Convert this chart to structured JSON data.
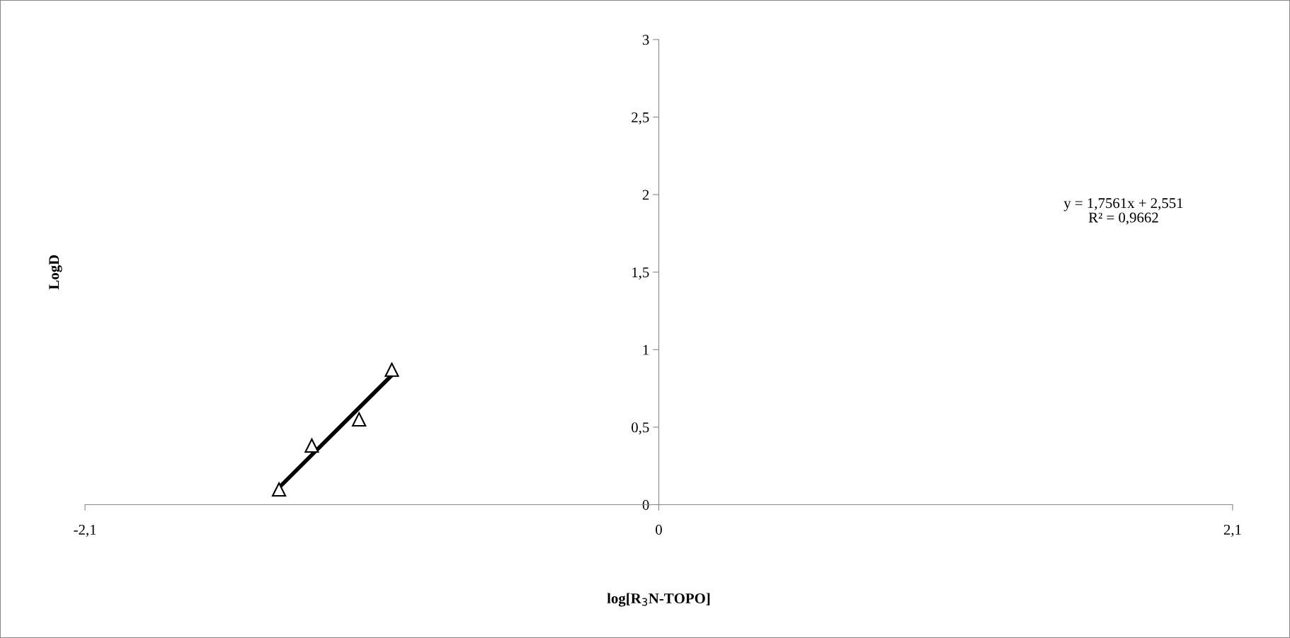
{
  "chart_data": {
    "type": "scatter",
    "xlabel": "log[R$_{3}$N-TOPO]",
    "ylabel": "LogD",
    "annotations": [
      "y = 1,7561x + 2,551\nR² = 0,9662"
    ],
    "xlim": [
      -2.1,
      2.1
    ],
    "xticks": [
      {
        "value": -2.1,
        "label": "-2,1"
      },
      0,
      {
        "value": 2.1,
        "label": "2,1"
      }
    ],
    "ylim": [
      0,
      3
    ],
    "yticks": [
      0,
      {
        "value": 0.5,
        "label": "0,5"
      },
      1,
      {
        "value": 1.5,
        "label": "1,5"
      },
      2,
      {
        "value": 2.5,
        "label": "2,5"
      },
      3
    ],
    "grid": false,
    "marker": "triangle",
    "series": [
      {
        "color": "#000000",
        "x": [
          -1.39,
          -1.27,
          -1.097,
          -0.977
        ],
        "values": [
          0.098,
          0.381,
          0.55,
          0.87
        ]
      },
      {
        "type": "line",
        "color": "#000000",
        "marker": "none",
        "x": [
          -1.39,
          -0.977
        ],
        "values": [
          0.11,
          0.835
        ]
      }
    ]
  }
}
